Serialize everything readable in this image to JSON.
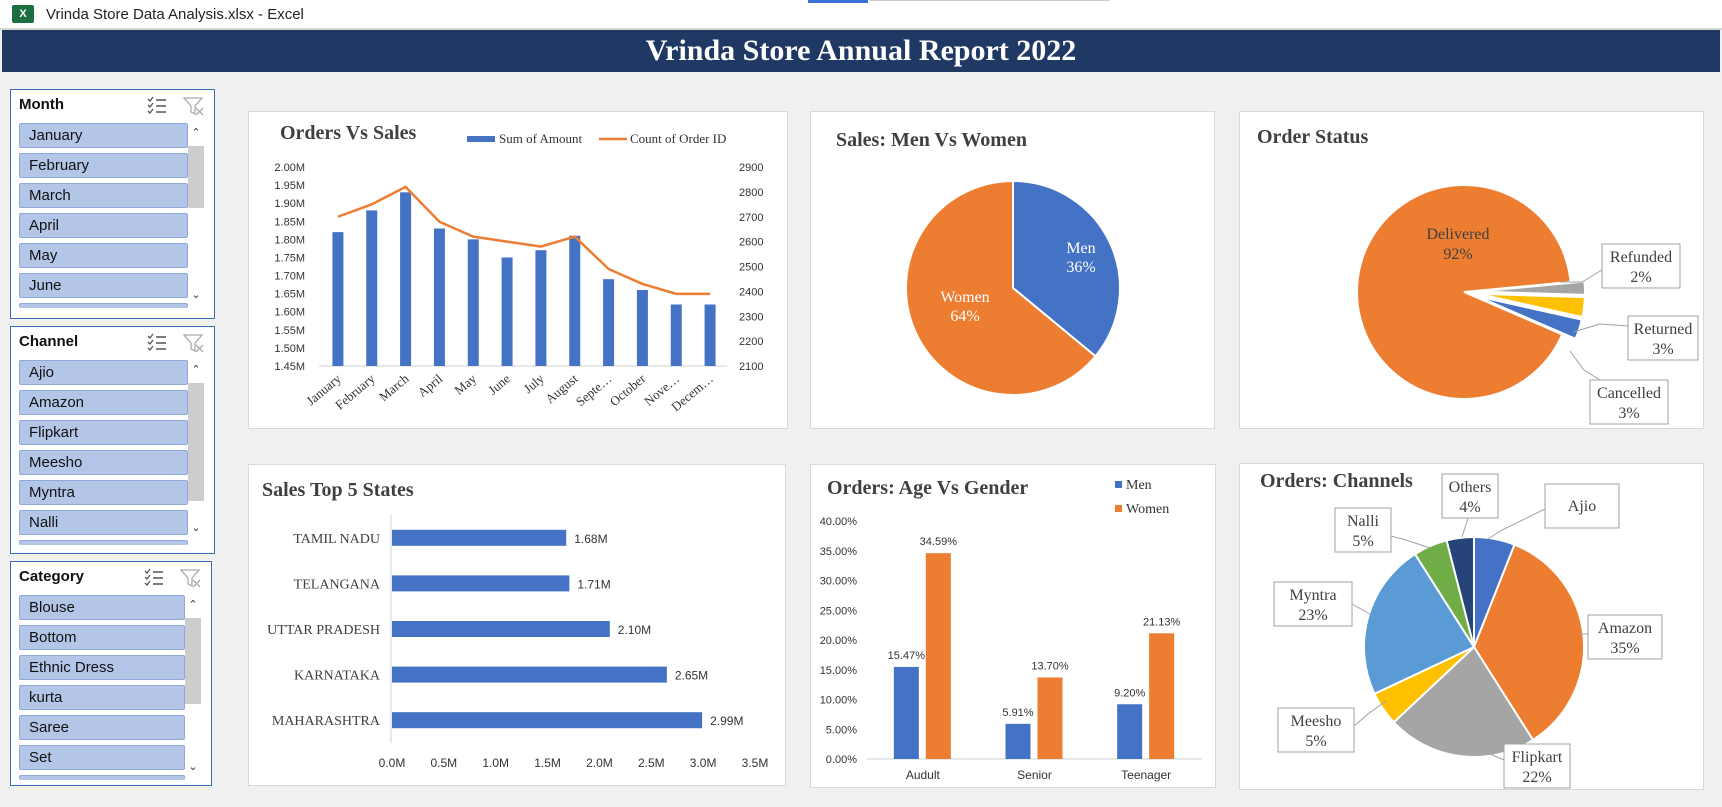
{
  "window": {
    "app_badge": "X",
    "title": "Vrinda Store Data Analysis.xlsx - Excel"
  },
  "dashboard": {
    "title": "Vrinda Store Annual Report 2022"
  },
  "slicers": [
    {
      "header": "Month",
      "items": [
        "January",
        "February",
        "March",
        "April",
        "May",
        "June"
      ]
    },
    {
      "header": "Channel",
      "items": [
        "Ajio",
        "Amazon",
        "Flipkart",
        "Meesho",
        "Myntra",
        "Nalli"
      ]
    },
    {
      "header": "Category",
      "items": [
        "Blouse",
        "Bottom",
        "Ethnic Dress",
        "kurta",
        "Saree",
        "Set"
      ]
    }
  ],
  "colors": {
    "blue": "#4472c4",
    "orange": "#ed7d31",
    "gray": "#a5a5a5",
    "yellow": "#ffc000",
    "lightblue": "#5b9bd5",
    "green": "#70ad47",
    "navy": "#264478",
    "banner": "#1f3864"
  },
  "icons": {
    "multiselect": "multi-select-icon",
    "clear_filter": "clear-filter-icon"
  },
  "chart_data": [
    {
      "id": "orders_vs_sales",
      "type": "bar",
      "title": "Orders Vs Sales",
      "categories": [
        "January",
        "February",
        "March",
        "April",
        "May",
        "June",
        "July",
        "August",
        "Septe…",
        "October",
        "Nove…",
        "Decem…"
      ],
      "series": [
        {
          "name": "Sum of Amount",
          "type": "bar",
          "axis": "left",
          "values": [
            1.82,
            1.88,
            1.93,
            1.83,
            1.8,
            1.75,
            1.77,
            1.81,
            1.69,
            1.66,
            1.62,
            1.62
          ]
        },
        {
          "name": "Count of Order ID",
          "type": "line",
          "axis": "right",
          "values": [
            2700,
            2750,
            2820,
            2680,
            2620,
            2600,
            2580,
            2620,
            2490,
            2430,
            2390,
            2390
          ]
        }
      ],
      "y_left": {
        "min": 1.45,
        "max": 2.0,
        "ticks": [
          "2.00M",
          "1.95M",
          "1.90M",
          "1.85M",
          "1.80M",
          "1.75M",
          "1.70M",
          "1.65M",
          "1.60M",
          "1.55M",
          "1.50M",
          "1.45M"
        ]
      },
      "y_right": {
        "min": 2100,
        "max": 2900,
        "ticks": [
          "2900",
          "2800",
          "2700",
          "2600",
          "2500",
          "2400",
          "2300",
          "2200",
          "2100"
        ]
      },
      "legend": "top-right"
    },
    {
      "id": "men_vs_women",
      "type": "pie",
      "title": "Sales: Men Vs Women",
      "slices": [
        {
          "label": "Men",
          "pct_label": "36%",
          "value": 36
        },
        {
          "label": "Women",
          "pct_label": "64%",
          "value": 64
        }
      ]
    },
    {
      "id": "order_status",
      "type": "pie",
      "title": "Order Status",
      "slices": [
        {
          "label": "Delivered",
          "pct_label": "92%",
          "value": 92
        },
        {
          "label": "Refunded",
          "pct_label": "2%",
          "value": 2
        },
        {
          "label": "Returned",
          "pct_label": "3%",
          "value": 3
        },
        {
          "label": "Cancelled",
          "pct_label": "3%",
          "value": 3
        }
      ]
    },
    {
      "id": "top5_states",
      "type": "bar",
      "orientation": "horizontal",
      "title": "Sales Top 5 States",
      "categories": [
        "TAMIL NADU",
        "TELANGANA",
        "UTTAR PRADESH",
        "KARNATAKA",
        "MAHARASHTRA"
      ],
      "values": [
        1.68,
        1.71,
        2.1,
        2.65,
        2.99
      ],
      "value_labels": [
        "1.68M",
        "1.71M",
        "2.10M",
        "2.65M",
        "2.99M"
      ],
      "x_ticks": [
        "0.0M",
        "0.5M",
        "1.0M",
        "1.5M",
        "2.0M",
        "2.5M",
        "3.0M",
        "3.5M"
      ],
      "xlim": [
        0,
        3.5
      ]
    },
    {
      "id": "age_vs_gender",
      "type": "bar",
      "title": "Orders: Age Vs Gender",
      "categories": [
        "Audult",
        "Senior",
        "Teenager"
      ],
      "series": [
        {
          "name": "Men",
          "values": [
            15.47,
            5.91,
            9.2
          ],
          "labels": [
            "15.47%",
            "5.91%",
            "9.20%"
          ]
        },
        {
          "name": "Women",
          "values": [
            34.59,
            13.7,
            21.13
          ],
          "labels": [
            "34.59%",
            "13.70%",
            "21.13%"
          ]
        }
      ],
      "y_ticks": [
        "40.00%",
        "35.00%",
        "30.00%",
        "25.00%",
        "20.00%",
        "15.00%",
        "10.00%",
        "5.00%",
        "0.00%"
      ],
      "ylim": [
        0,
        40
      ],
      "legend": "top-right"
    },
    {
      "id": "channels",
      "type": "pie",
      "title": "Orders: Channels",
      "slices": [
        {
          "label": "Ajio",
          "pct_label": "",
          "value": 6
        },
        {
          "label": "Amazon",
          "pct_label": "35%",
          "value": 35
        },
        {
          "label": "Flipkart",
          "pct_label": "22%",
          "value": 22
        },
        {
          "label": "Meesho",
          "pct_label": "5%",
          "value": 5
        },
        {
          "label": "Myntra",
          "pct_label": "23%",
          "value": 23
        },
        {
          "label": "Nalli",
          "pct_label": "5%",
          "value": 5
        },
        {
          "label": "Others",
          "pct_label": "4%",
          "value": 4
        }
      ]
    }
  ]
}
